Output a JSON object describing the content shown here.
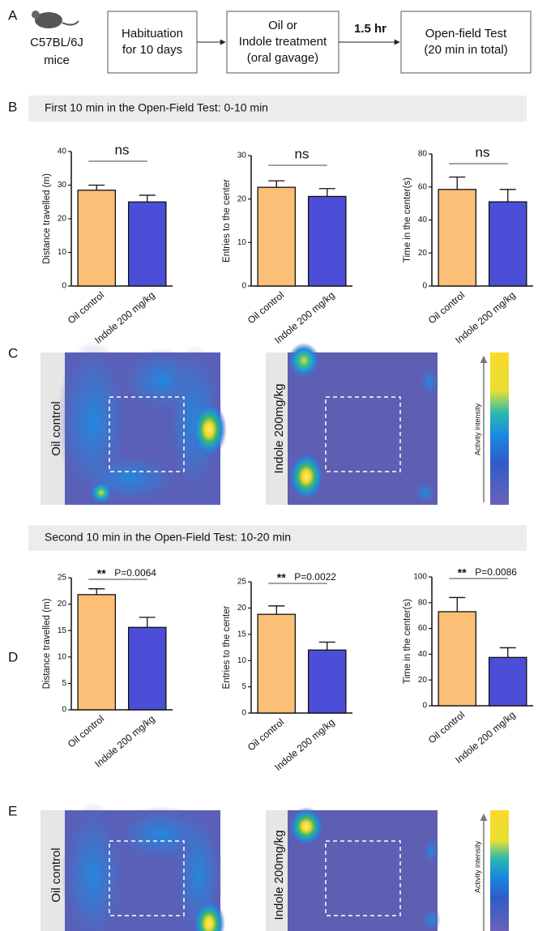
{
  "panel_labels": [
    "A",
    "B",
    "C",
    "D",
    "E"
  ],
  "workflow": {
    "strain": "C57BL/6J",
    "animal": "mice",
    "steps": [
      [
        "Habituation",
        "for 10 days"
      ],
      [
        "Oil or",
        "Indole treatment",
        "(oral gavage)"
      ],
      [
        "Open-field Test",
        "(20 min in total)"
      ]
    ],
    "interval": "1.5 hr"
  },
  "sections": [
    "First 10 min in the Open-Field Test: 0-10 min",
    "Second 10 min in the Open-Field Test: 10-20 min"
  ],
  "heatmaps": {
    "groups": [
      "Oil  control",
      "Indole 200mg/kg"
    ],
    "colorbar_label": "Activity intensity"
  },
  "chart_data": [
    {
      "type": "bar",
      "ylabel": "Distance travelled (m)",
      "categories": [
        "Oil control",
        "Indole 200 mg/kg"
      ],
      "values": [
        28.5,
        25
      ],
      "errors": [
        1.5,
        2
      ],
      "colors": [
        "#fbbf77",
        "#4c4ed8"
      ],
      "ylim": [
        0,
        40
      ],
      "yticks": [
        0,
        10,
        20,
        30,
        40
      ],
      "significance": "ns"
    },
    {
      "type": "bar",
      "ylabel": "Entries to the center",
      "categories": [
        "Oil control",
        "Indole 200 mg/kg"
      ],
      "values": [
        22.7,
        20.6
      ],
      "errors": [
        1.5,
        1.8
      ],
      "colors": [
        "#fbbf77",
        "#4c4ed8"
      ],
      "ylim": [
        0,
        30
      ],
      "yticks": [
        0,
        10,
        20,
        30
      ],
      "significance": "ns"
    },
    {
      "type": "bar",
      "ylabel": "Time in the center(s)",
      "categories": [
        "Oil control",
        "Indole 200 mg/kg"
      ],
      "values": [
        58.5,
        51
      ],
      "errors": [
        7.5,
        7.5
      ],
      "colors": [
        "#fbbf77",
        "#4c4ed8"
      ],
      "ylim": [
        0,
        80
      ],
      "yticks": [
        0,
        20,
        40,
        60,
        80
      ],
      "significance": "ns"
    },
    {
      "type": "bar",
      "ylabel": "Distance travelled (m)",
      "categories": [
        "Oil control",
        "Indole 200 mg/kg"
      ],
      "values": [
        21.8,
        15.6
      ],
      "errors": [
        1.1,
        1.9
      ],
      "colors": [
        "#fbbf77",
        "#4c4ed8"
      ],
      "ylim": [
        0,
        25
      ],
      "yticks": [
        0,
        5,
        10,
        15,
        20,
        25
      ],
      "significance": "**",
      "p_value": "P=0.0064"
    },
    {
      "type": "bar",
      "ylabel": "Entries to the center",
      "categories": [
        "Oil control",
        "Indole 200 mg/kg"
      ],
      "values": [
        18.8,
        12
      ],
      "errors": [
        1.6,
        1.5
      ],
      "colors": [
        "#fbbf77",
        "#4c4ed8"
      ],
      "ylim": [
        0,
        25
      ],
      "yticks": [
        0,
        5,
        10,
        15,
        20,
        25
      ],
      "significance": "**",
      "p_value": "P=0.0022"
    },
    {
      "type": "bar",
      "ylabel": "Time in the center(s)",
      "categories": [
        "Oil control",
        "Indole 200 mg/kg"
      ],
      "values": [
        73,
        37.5
      ],
      "errors": [
        11,
        7.5
      ],
      "colors": [
        "#fbbf77",
        "#4c4ed8"
      ],
      "ylim": [
        0,
        100
      ],
      "yticks": [
        0,
        20,
        40,
        60,
        80,
        100
      ],
      "significance": "**",
      "p_value": "P=0.0086"
    }
  ]
}
